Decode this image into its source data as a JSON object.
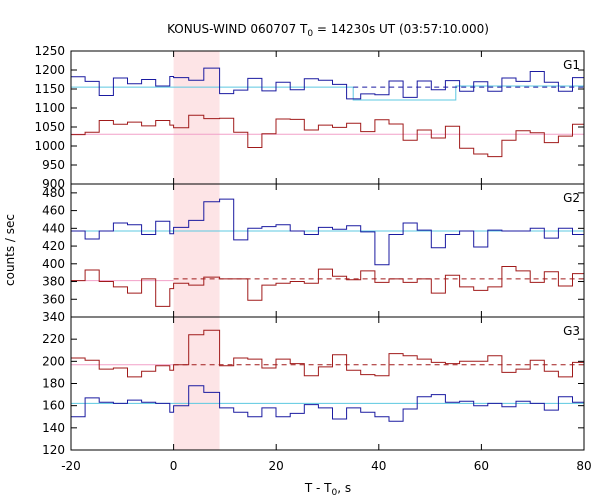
{
  "chart_data": {
    "type": "line",
    "title": {
      "prefix": "KONUS-WIND 060707 T",
      "sub": "0",
      "suffix": " = 14230s UT (03:57:10.000)"
    },
    "xlabel": {
      "prefix": "T - T",
      "sub": "0",
      "suffix": ", s"
    },
    "ylabel": "counts / sec",
    "xlim": [
      -20,
      80
    ],
    "x_ticks": [
      -20,
      0,
      20,
      40,
      60,
      80
    ],
    "highlight_interval": [
      0,
      8.96
    ],
    "colors": {
      "blue": "#1a1aa0",
      "red": "#a01a1a",
      "cyan": "#5cc8e0",
      "pink": "#f2a0c8",
      "shade": "#fde4e6"
    },
    "bin_edges": [
      -20,
      -17.248,
      -14.496,
      -11.744,
      -8.992,
      -6.24,
      -3.488,
      -0.736,
      0,
      2.944,
      5.888,
      8.96,
      11.712,
      14.464,
      17.216,
      19.968,
      22.72,
      25.472,
      28.224,
      30.976,
      33.728,
      36.48,
      39.232,
      41.984,
      44.736,
      47.488,
      50.24,
      52.992,
      55.744,
      58.496,
      61.248,
      64.0,
      66.752,
      69.504,
      72.256,
      75.008,
      77.76,
      80
    ],
    "panels": [
      {
        "label": "G1",
        "ylim": [
          900,
          1250
        ],
        "y_ticks": [
          900,
          950,
          1000,
          1050,
          1100,
          1150,
          1200,
          1250
        ],
        "series": [
          {
            "color": "blue",
            "values": [
              1182,
              1170,
              1133,
              1179,
              1164,
              1175,
              1158,
              1183,
              1180,
              1173,
              1205,
              1138,
              1147,
              1178,
              1145,
              1168,
              1148,
              1177,
              1173,
              1162,
              1124,
              1137,
              1135,
              1171,
              1128,
              1171,
              1148,
              1172,
              1144,
              1169,
              1144,
              1179,
              1170,
              1196,
              1168,
              1144,
              1180
            ]
          },
          {
            "color": "red",
            "values": [
              1030,
              1036,
              1067,
              1057,
              1063,
              1053,
              1067,
              1055,
              1048,
              1081,
              1072,
              1073,
              1036,
              996,
              1032,
              1071,
              1070,
              1042,
              1055,
              1049,
              1060,
              1038,
              1069,
              1058,
              1015,
              1042,
              1021,
              1052,
              994,
              979,
              972,
              1015,
              1040,
              1035,
              1009,
              1026,
              1057
            ]
          }
        ],
        "fits": [
          {
            "color": "cyan",
            "style": "solid",
            "segments": [
              [
                -20,
                1155
              ],
              [
                35,
                1155
              ],
              [
                35,
                1121
              ],
              [
                55,
                1121
              ],
              [
                55,
                1158
              ],
              [
                80,
                1158
              ]
            ]
          },
          {
            "color": "blue",
            "style": "dashed",
            "segments": [
              [
                35,
                1155
              ],
              [
                80,
                1155
              ]
            ]
          },
          {
            "color": "pink",
            "style": "solid",
            "segments": [
              [
                -20,
                1031
              ],
              [
                80,
                1031
              ]
            ]
          }
        ]
      },
      {
        "label": "G2",
        "ylim": [
          340,
          490
        ],
        "y_ticks": [
          340,
          360,
          380,
          400,
          420,
          440,
          460,
          480
        ],
        "series": [
          {
            "color": "blue",
            "values": [
              437,
              428,
              437,
              446,
              444,
              433,
              448,
              434,
              441,
              449,
              470,
              473,
              427,
              440,
              442,
              444,
              437,
              433,
              441,
              439,
              443,
              436,
              399,
              433,
              446,
              438,
              418,
              433,
              437,
              419,
              438,
              437,
              437,
              440,
              429,
              440,
              433
            ]
          },
          {
            "color": "red",
            "values": [
              381,
              393,
              380,
              374,
              367,
              383,
              352,
              372,
              378,
              376,
              385,
              383,
              383,
              359,
              376,
              378,
              380,
              378,
              394,
              386,
              382,
              392,
              379,
              383,
              379,
              383,
              367,
              387,
              374,
              370,
              374,
              397,
              392,
              379,
              391,
              375,
              389
            ]
          }
        ],
        "fits": [
          {
            "color": "cyan",
            "style": "solid",
            "segments": [
              [
                -20,
                437
              ],
              [
                80,
                437
              ]
            ]
          },
          {
            "color": "pink",
            "style": "solid",
            "segments": [
              [
                -20,
                381
              ],
              [
                0,
                381
              ]
            ]
          },
          {
            "color": "red",
            "style": "dashed",
            "segments": [
              [
                0,
                383
              ],
              [
                80,
                383
              ]
            ]
          }
        ]
      },
      {
        "label": "G3",
        "ylim": [
          120,
          240
        ],
        "y_ticks": [
          120,
          140,
          160,
          180,
          200,
          220
        ],
        "series": [
          {
            "color": "blue",
            "values": [
              150,
              167,
              163,
              162,
              165,
              163,
              162,
              154,
              160,
              178,
              172,
              158,
              154,
              150,
              158,
              150,
              153,
              161,
              158,
              148,
              158,
              154,
              150,
              146,
              157,
              168,
              170,
              163,
              164,
              160,
              162,
              159,
              164,
              162,
              156,
              168,
              163
            ]
          },
          {
            "color": "red",
            "values": [
              203,
              201,
              193,
              194,
              186,
              191,
              196,
              192,
              197,
              224,
              228,
              196,
              203,
              202,
              194,
              202,
              198,
              187,
              195,
              206,
              192,
              188,
              187,
              207,
              205,
              202,
              199,
              198,
              200,
              200,
              205,
              190,
              193,
              201,
              191,
              186,
              199
            ]
          }
        ],
        "fits": [
          {
            "color": "cyan",
            "style": "solid",
            "segments": [
              [
                -20,
                162
              ],
              [
                80,
                162
              ]
            ]
          },
          {
            "color": "pink",
            "style": "solid",
            "segments": [
              [
                -20,
                197
              ],
              [
                0,
                197
              ]
            ]
          },
          {
            "color": "red",
            "style": "dashed",
            "segments": [
              [
                0,
                197
              ],
              [
                80,
                197
              ]
            ]
          }
        ]
      }
    ]
  }
}
